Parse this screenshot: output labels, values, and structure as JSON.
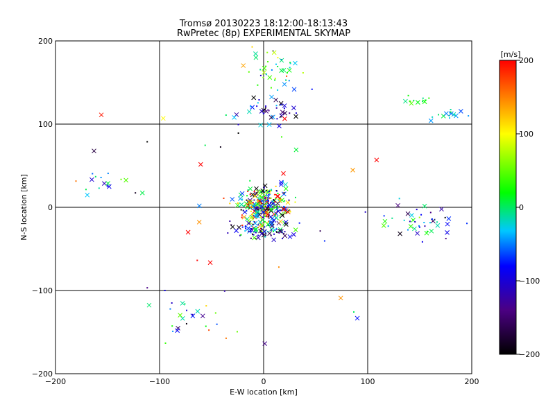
{
  "chart_data": {
    "type": "scatter",
    "title": "Tromsø 20130223 18:12:00-18:13:43",
    "subtitle": "RwPretec (8p) EXPERIMENTAL SKYMAP",
    "xlabel": "E-W location [km]",
    "ylabel": "N-S location [km]",
    "xlim": [
      -200,
      200
    ],
    "ylim": [
      -200,
      200
    ],
    "xticks": [
      -200,
      -100,
      0,
      100,
      200
    ],
    "yticks": [
      -200,
      -100,
      0,
      100,
      200
    ],
    "grid": true,
    "colorbar": {
      "label": "[m/s]",
      "range": [
        -200,
        200
      ],
      "ticks": [
        200,
        100,
        0,
        -100,
        -200
      ],
      "colormap": "rainbow-black-to-red",
      "stops": [
        "#000000",
        "#4b0082",
        "#0000ff",
        "#00c8ff",
        "#00ff00",
        "#ffff00",
        "#ff0000"
      ]
    },
    "clusters": [
      {
        "region": "north-top",
        "cx": 10,
        "cy": 165,
        "sx": 12,
        "sy": 12,
        "n": 45,
        "vmean": 10,
        "vspread": 60
      },
      {
        "region": "north-mid",
        "cx": 5,
        "cy": 115,
        "sx": 18,
        "sy": 10,
        "n": 40,
        "vmean": -120,
        "vspread": 60
      },
      {
        "region": "north-east",
        "cx": 145,
        "cy": 130,
        "sx": 8,
        "sy": 3,
        "n": 12,
        "vmean": 20,
        "vspread": 20
      },
      {
        "region": "east-top",
        "cx": 180,
        "cy": 112,
        "sx": 10,
        "sy": 4,
        "n": 16,
        "vmean": -20,
        "vspread": 30
      },
      {
        "region": "west",
        "cx": -150,
        "cy": 30,
        "sx": 15,
        "sy": 8,
        "n": 14,
        "vmean": -30,
        "vspread": 60
      },
      {
        "region": "center",
        "cx": 0,
        "cy": 0,
        "sx": 12,
        "sy": 12,
        "n": 300,
        "vmean": 0,
        "vspread": 140
      },
      {
        "region": "center-south",
        "cx": 0,
        "cy": -28,
        "sx": 14,
        "sy": 5,
        "n": 70,
        "vmean": -110,
        "vspread": 70
      },
      {
        "region": "east",
        "cx": 150,
        "cy": -18,
        "sx": 22,
        "sy": 10,
        "n": 45,
        "vmean": -60,
        "vspread": 60
      },
      {
        "region": "south-west",
        "cx": -75,
        "cy": -130,
        "sx": 25,
        "sy": 14,
        "n": 25,
        "vmean": -50,
        "vspread": 80
      },
      {
        "region": "scattered",
        "cx": 0,
        "cy": 0,
        "sx": 90,
        "sy": 90,
        "n": 45,
        "vmean": 0,
        "vspread": 160
      }
    ]
  }
}
